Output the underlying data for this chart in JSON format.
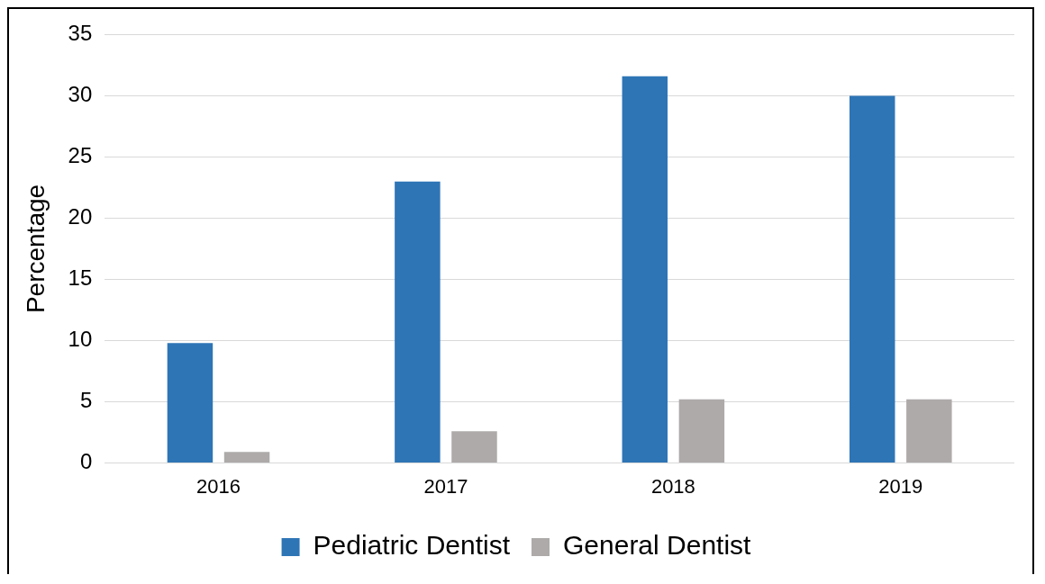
{
  "chart_data": {
    "type": "bar",
    "ylabel": "Percentage",
    "categories": [
      "2016",
      "2017",
      "2018",
      "2019"
    ],
    "series": [
      {
        "name": "Pediatric Dentist",
        "color": "#2e75b6",
        "values": [
          9.8,
          23,
          31.6,
          30
        ]
      },
      {
        "name": "General Dentist",
        "color": "#aeaaaa",
        "values": [
          0.9,
          2.6,
          5.2,
          5.2
        ]
      }
    ],
    "ylim": [
      0,
      35
    ],
    "yticks": [
      0,
      5,
      10,
      15,
      20,
      25,
      30,
      35
    ],
    "grid": "y",
    "legend": "bottom"
  }
}
